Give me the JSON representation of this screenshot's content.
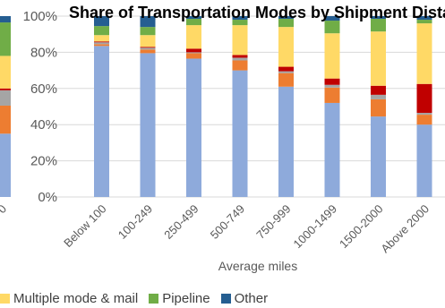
{
  "chart_data": {
    "type": "bar",
    "stacked": true,
    "title": "Share of Transportation Modes by Shipment Distance",
    "xlabel": "Average miles",
    "ylabel": "",
    "ylim": [
      0,
      100
    ],
    "y_ticks": [
      "0%",
      "20%",
      "40%",
      "60%",
      "80%",
      "100%"
    ],
    "grid": true,
    "legend_position": "bottom",
    "categories": [
      "Below 100",
      "100-249",
      "250-499",
      "500-749",
      "750-999",
      "1000-1499",
      "1500-2000",
      "Above 2000"
    ],
    "series": [
      {
        "name": "",
        "color": "#8eaadb",
        "values": [
          83.5,
          79.5,
          76.5,
          70,
          61,
          52,
          44.5,
          40
        ]
      },
      {
        "name": "",
        "color": "#ed7d31",
        "values": [
          1,
          2,
          3,
          5.5,
          7.5,
          8.5,
          9.5,
          5.5
        ]
      },
      {
        "name": "",
        "color": "#a5a5a5",
        "values": [
          1,
          1,
          0.5,
          1.5,
          1,
          1.5,
          2.5,
          1
        ]
      },
      {
        "name": "",
        "color": "#c00000",
        "values": [
          0.5,
          0.5,
          2,
          1.5,
          2.5,
          3.5,
          5,
          16
        ]
      },
      {
        "name": "Multiple mode & mail",
        "color": "#ffd966",
        "values": [
          3.5,
          6.5,
          13,
          16.5,
          22,
          25,
          30,
          33.5
        ]
      },
      {
        "name": "Pipeline",
        "color": "#70ad47",
        "values": [
          5,
          4.5,
          3.5,
          3,
          4.5,
          7,
          7,
          2
        ]
      },
      {
        "name": "Other",
        "color": "#255e91",
        "values": [
          5.5,
          6,
          1.5,
          2,
          1.5,
          2.5,
          1.5,
          2
        ]
      }
    ],
    "partial_bar": {
      "color_order": [
        "#8eaadb",
        "#ed7d31",
        "#a5a5a5",
        "#c00000",
        "#ffd966",
        "#70ad47",
        "#255e91"
      ],
      "values": [
        35,
        15.5,
        8.5,
        1,
        18,
        18.5,
        3.5
      ]
    },
    "partial_tick_fragment": "0"
  }
}
